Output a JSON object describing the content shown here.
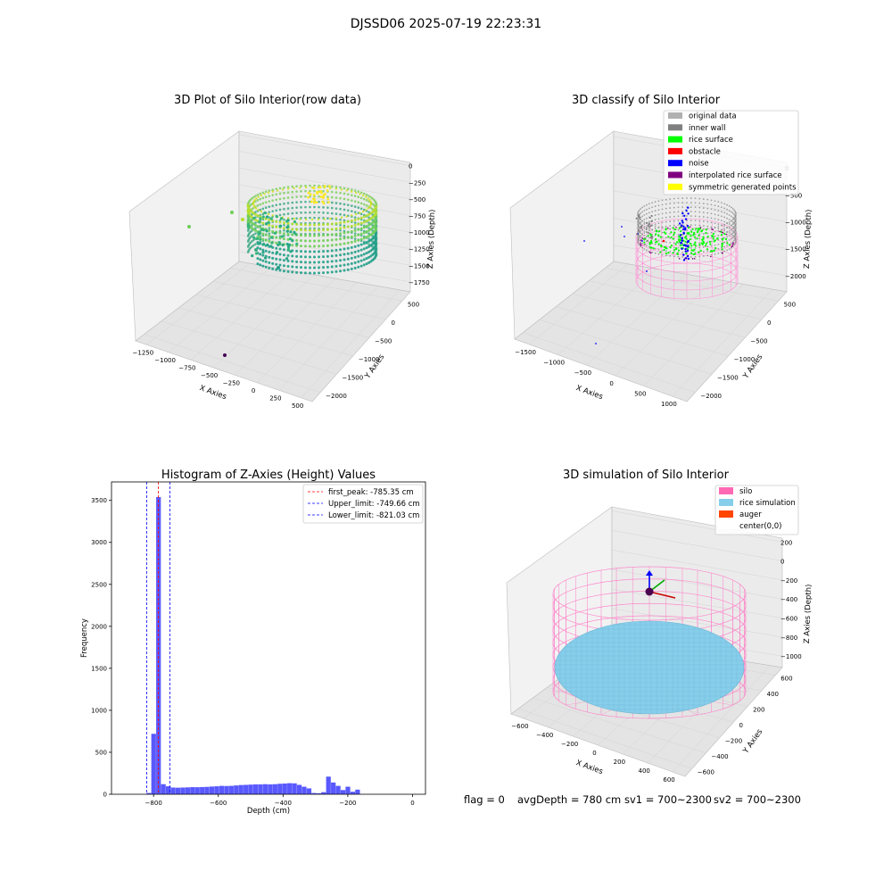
{
  "suptitle": "DJSSD06 2025-07-19 22:23:31",
  "panels": {
    "raw": {
      "title": "3D Plot of Silo Interior(row data)",
      "xlabel": "X Axies",
      "ylabel": "Y Axies",
      "zlabel": "Z Axies (Depth)",
      "xticks": [
        "−1250",
        "−1000",
        "−750",
        "−500",
        "−250",
        "0",
        "250",
        "500"
      ],
      "yticks": [
        "500",
        "0",
        "−500",
        "−1000",
        "−1500",
        "−2000"
      ],
      "zticks": [
        "0",
        "−250",
        "−500",
        "−750",
        "−1000",
        "−1250",
        "−1500",
        "−1750"
      ]
    },
    "classify": {
      "title": "3D classify of Silo Interior",
      "xlabel": "X Axies",
      "ylabel": "Y Axies",
      "zlabel": "Z Axies (Depth)",
      "xticks": [
        "−1500",
        "−1000",
        "−500",
        "0",
        "500",
        "1000"
      ],
      "yticks": [
        "500",
        "0",
        "−500",
        "−1000",
        "−1500",
        "−2000"
      ],
      "zticks": [
        "0",
        "−500",
        "−1000",
        "−1500",
        "−2000"
      ],
      "legend": [
        {
          "label": "original data",
          "color": "#b0b0b0"
        },
        {
          "label": "inner wall",
          "color": "#808080"
        },
        {
          "label": "rice surface",
          "color": "#00ff00"
        },
        {
          "label": "obstacle",
          "color": "#ff0000"
        },
        {
          "label": "noise",
          "color": "#0000ff"
        },
        {
          "label": "interpolated rice surface",
          "color": "#800080"
        },
        {
          "label": "symmetric generated points",
          "color": "#ffff00"
        }
      ]
    },
    "simulation": {
      "title": "3D simulation of Silo Interior",
      "xlabel": "X Axies",
      "ylabel": "Y Axies",
      "zlabel": "Z Axies (Depth)",
      "xticks": [
        "−600",
        "−400",
        "−200",
        "0",
        "200",
        "400",
        "600"
      ],
      "yticks": [
        "600",
        "400",
        "200",
        "0",
        "−200",
        "−400",
        "−600"
      ],
      "zticks": [
        "200",
        "0",
        "−200",
        "−400",
        "−600",
        "−800",
        "−1000"
      ],
      "legend": [
        {
          "label": "silo",
          "color": "#ff69b4"
        },
        {
          "label": "rice simulation",
          "color": "#87ceeb"
        },
        {
          "label": "auger",
          "color": "#ff4500"
        },
        {
          "label": "center(0,0)",
          "color": "#ffffff"
        }
      ]
    }
  },
  "chart_data": {
    "type": "bar",
    "title": "Histogram of Z-Axies (Height) Values",
    "xlabel": "Depth (cm)",
    "ylabel": "Frequency",
    "xlim": [
      -930,
      40
    ],
    "ylim": [
      0,
      3720
    ],
    "xticks": [
      -800,
      -600,
      -400,
      -200,
      0
    ],
    "yticks": [
      0,
      500,
      1000,
      1500,
      2000,
      2500,
      3000,
      3500
    ],
    "bar_color": "#5050ff",
    "bin_start": -822,
    "bin_width": 15,
    "values": [
      15,
      720,
      3540,
      120,
      95,
      80,
      78,
      80,
      82,
      85,
      84,
      86,
      88,
      92,
      95,
      100,
      98,
      100,
      105,
      110,
      112,
      115,
      118,
      118,
      120,
      118,
      120,
      125,
      128,
      132,
      130,
      112,
      90,
      70,
      15,
      12,
      25,
      210,
      140,
      100,
      50,
      90,
      30,
      55
    ],
    "lines": [
      {
        "label": "first_peak: -785.35 cm",
        "x": -785.35,
        "color": "#ff0000"
      },
      {
        "label": "Upper_limit: -749.66 cm",
        "x": -749.66,
        "color": "#0000ff"
      },
      {
        "label": "Lower_limit: -821.03 cm",
        "x": -821.03,
        "color": "#0000ff"
      }
    ]
  },
  "footer": {
    "flag": "flag = 0",
    "avg": "avgDepth = 780 cm",
    "sv1": "sv1 = 700~2300",
    "sv2": "sv2 = 700~2300"
  }
}
